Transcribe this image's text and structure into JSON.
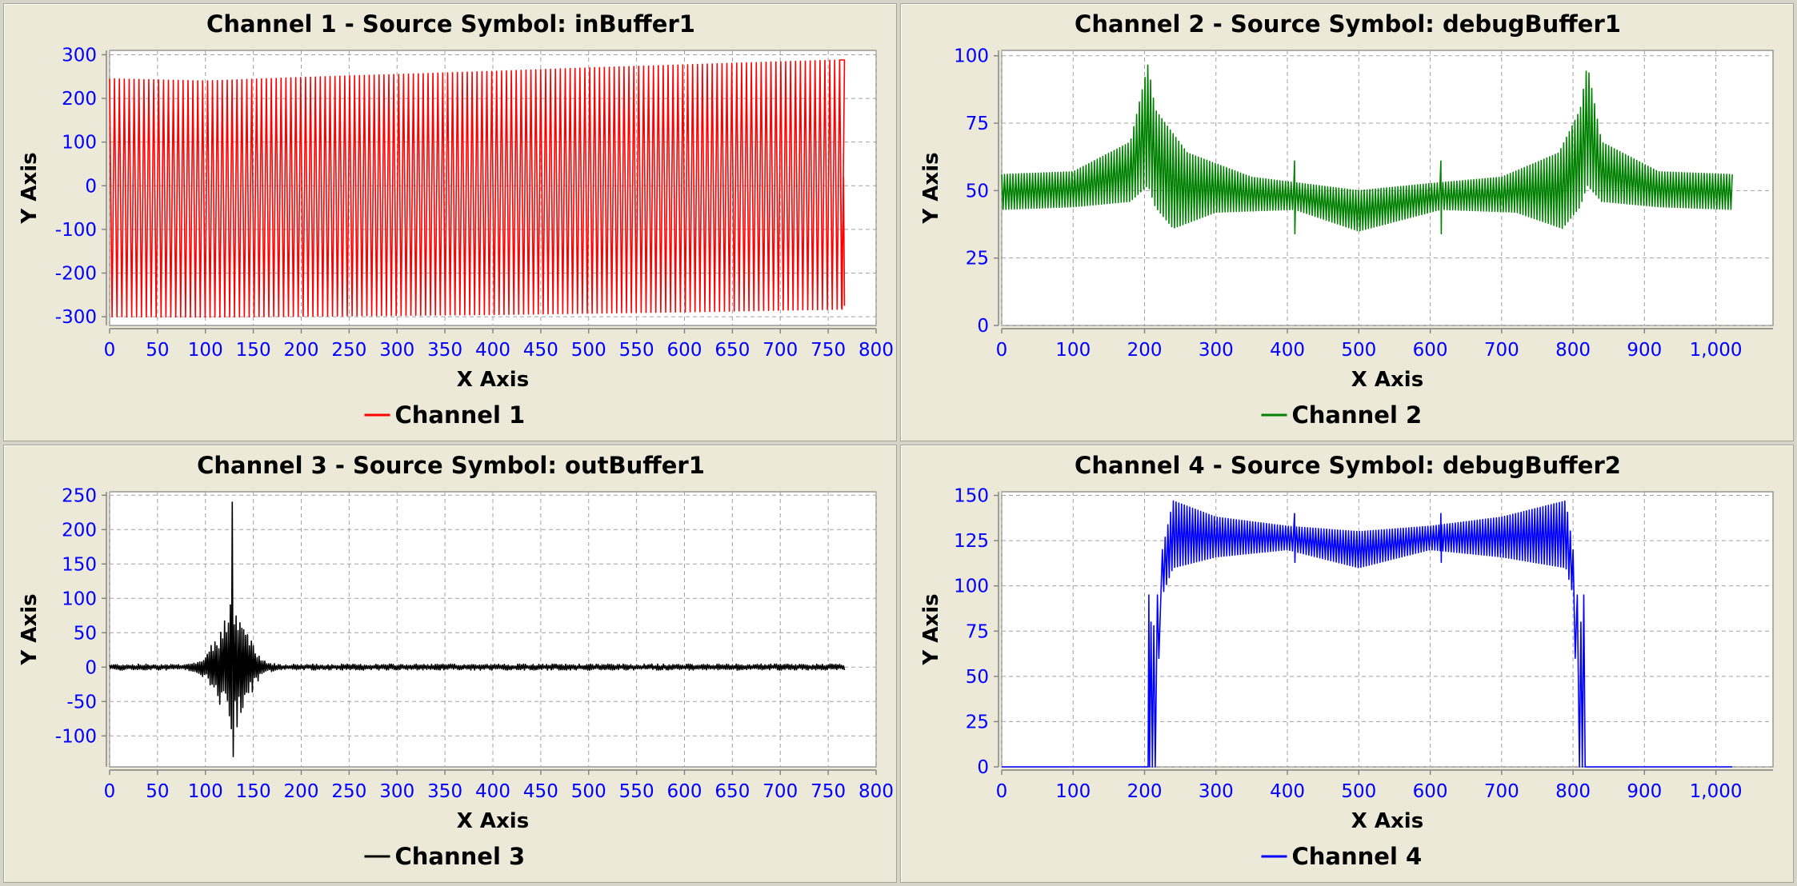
{
  "window": {
    "background": "#ece9d8"
  },
  "panels": [
    {
      "title": "Channel 1 - Source Symbol: inBuffer1",
      "xlabel": "X Axis",
      "ylabel": "Y Axis",
      "legend": "Channel 1",
      "color": "#ff0000"
    },
    {
      "title": "Channel 2 - Source Symbol: debugBuffer1",
      "xlabel": "X Axis",
      "ylabel": "Y Axis",
      "legend": "Channel 2",
      "color": "#008000"
    },
    {
      "title": "Channel 3 - Source Symbol: outBuffer1",
      "xlabel": "X Axis",
      "ylabel": "Y Axis",
      "legend": "Channel 3",
      "color": "#000000"
    },
    {
      "title": "Channel 4 - Source Symbol: debugBuffer2",
      "xlabel": "X Axis",
      "ylabel": "Y Axis",
      "legend": "Channel 4",
      "color": "#0000ff"
    }
  ],
  "chart_data": [
    {
      "type": "line",
      "title": "Channel 1 - Source Symbol: inBuffer1",
      "xlabel": "X Axis",
      "ylabel": "Y Axis",
      "xlim": [
        0,
        800
      ],
      "ylim": [
        -320,
        310
      ],
      "xticks": [
        0,
        50,
        100,
        150,
        200,
        250,
        300,
        350,
        400,
        450,
        500,
        550,
        600,
        650,
        700,
        750,
        800
      ],
      "xtick_labels": [
        "0",
        "50",
        "100",
        "150",
        "200",
        "250",
        "300",
        "350",
        "400",
        "450",
        "500",
        "550",
        "600",
        "650",
        "700",
        "750",
        "800"
      ],
      "yticks": [
        -300,
        -200,
        -100,
        0,
        100,
        200,
        300
      ],
      "ytick_labels": [
        "-300",
        "-200",
        "-100",
        "0",
        "100",
        "200",
        "300"
      ],
      "grid": true,
      "legend_position": "bottom",
      "series": [
        {
          "name": "Channel 1",
          "color": "#ff0000",
          "signal": {
            "shape": "oscillation",
            "x_start": 0,
            "x_end": 767,
            "cycles": 150,
            "upper_envelope": [
              [
                0,
                245
              ],
              [
                100,
                240
              ],
              [
                200,
                248
              ],
              [
                300,
                255
              ],
              [
                400,
                262
              ],
              [
                500,
                270
              ],
              [
                600,
                277
              ],
              [
                700,
                284
              ],
              [
                762,
                288
              ]
            ],
            "lower_envelope": [
              [
                0,
                -300
              ],
              [
                100,
                -301
              ],
              [
                200,
                -299
              ],
              [
                300,
                -297
              ],
              [
                400,
                -295
              ],
              [
                500,
                -292
              ],
              [
                600,
                -289
              ],
              [
                700,
                -285
              ],
              [
                762,
                -283
              ]
            ],
            "end_points": [
              [
                762,
                288
              ],
              [
                764,
                -280
              ],
              [
                766,
                20
              ],
              [
                767,
                -275
              ]
            ]
          }
        }
      ]
    },
    {
      "type": "line",
      "title": "Channel 2 - Source Symbol: debugBuffer1",
      "xlabel": "X Axis",
      "ylabel": "Y Axis",
      "xlim": [
        0,
        1080
      ],
      "ylim": [
        0,
        102
      ],
      "xticks": [
        0,
        100,
        200,
        300,
        400,
        500,
        600,
        700,
        800,
        900,
        1000
      ],
      "xtick_labels": [
        "0",
        "100",
        "200",
        "300",
        "400",
        "500",
        "600",
        "700",
        "800",
        "900",
        "1,000"
      ],
      "yticks": [
        0,
        25,
        50,
        75,
        100
      ],
      "ytick_labels": [
        "0",
        "25",
        "50",
        "75",
        "100"
      ],
      "grid": true,
      "legend_position": "bottom",
      "series": [
        {
          "name": "Channel 2",
          "color": "#008000",
          "signal": {
            "shape": "oscillation",
            "x_start": 0,
            "x_end": 1023,
            "cycles": 260,
            "upper_envelope": [
              [
                0,
                56
              ],
              [
                100,
                57
              ],
              [
                180,
                68
              ],
              [
                205,
                97
              ],
              [
                215,
                80
              ],
              [
                260,
                64
              ],
              [
                350,
                55
              ],
              [
                410,
                53
              ],
              [
                500,
                50
              ],
              [
                615,
                53
              ],
              [
                700,
                55
              ],
              [
                780,
                64
              ],
              [
                810,
                80
              ],
              [
                820,
                97
              ],
              [
                840,
                68
              ],
              [
                920,
                57
              ],
              [
                1023,
                56
              ]
            ],
            "lower_envelope": [
              [
                0,
                43
              ],
              [
                100,
                44
              ],
              [
                180,
                46
              ],
              [
                205,
                52
              ],
              [
                215,
                44
              ],
              [
                240,
                36
              ],
              [
                300,
                42
              ],
              [
                410,
                43
              ],
              [
                500,
                35
              ],
              [
                615,
                43
              ],
              [
                720,
                42
              ],
              [
                785,
                36
              ],
              [
                810,
                44
              ],
              [
                820,
                52
              ],
              [
                840,
                46
              ],
              [
                920,
                44
              ],
              [
                1023,
                43
              ]
            ],
            "spikes": [
              [
                410,
                61,
                34
              ],
              [
                615,
                61,
                34
              ]
            ]
          }
        }
      ]
    },
    {
      "type": "line",
      "title": "Channel 3 - Source Symbol: outBuffer1",
      "xlabel": "X Axis",
      "ylabel": "Y Axis",
      "xlim": [
        0,
        800
      ],
      "ylim": [
        -145,
        255
      ],
      "xticks": [
        0,
        50,
        100,
        150,
        200,
        250,
        300,
        350,
        400,
        450,
        500,
        550,
        600,
        650,
        700,
        750,
        800
      ],
      "xtick_labels": [
        "0",
        "50",
        "100",
        "150",
        "200",
        "250",
        "300",
        "350",
        "400",
        "450",
        "500",
        "550",
        "600",
        "650",
        "700",
        "750",
        "800"
      ],
      "yticks": [
        -100,
        -50,
        0,
        50,
        100,
        150,
        200,
        250
      ],
      "ytick_labels": [
        "-100",
        "-50",
        "0",
        "50",
        "100",
        "150",
        "200",
        "250"
      ],
      "grid": true,
      "legend_position": "bottom",
      "series": [
        {
          "name": "Channel 3",
          "color": "#000000",
          "signal": {
            "shape": "burst",
            "x_start": 0,
            "x_end": 767,
            "center": 128,
            "peak_max": 240,
            "peak_min": -130,
            "burst_width": 45,
            "baseline_noise": 3
          }
        }
      ]
    },
    {
      "type": "line",
      "title": "Channel 4 - Source Symbol: debugBuffer2",
      "xlabel": "X Axis",
      "ylabel": "Y Axis",
      "xlim": [
        0,
        1080
      ],
      "ylim": [
        0,
        152
      ],
      "xticks": [
        0,
        100,
        200,
        300,
        400,
        500,
        600,
        700,
        800,
        900,
        1000
      ],
      "xtick_labels": [
        "0",
        "100",
        "200",
        "300",
        "400",
        "500",
        "600",
        "700",
        "800",
        "900",
        "1,000"
      ],
      "yticks": [
        0,
        25,
        50,
        75,
        100,
        125,
        150
      ],
      "ytick_labels": [
        "0",
        "25",
        "50",
        "75",
        "100",
        "125",
        "150"
      ],
      "grid": true,
      "legend_position": "bottom",
      "series": [
        {
          "name": "Channel 4",
          "color": "#0000ff",
          "signal": {
            "shape": "oscillation",
            "x_start": 225,
            "x_end": 800,
            "cycles": 150,
            "upper_envelope": [
              [
                225,
                120
              ],
              [
                240,
                147
              ],
              [
                300,
                138
              ],
              [
                400,
                133
              ],
              [
                500,
                130
              ],
              [
                600,
                133
              ],
              [
                700,
                138
              ],
              [
                790,
                147
              ],
              [
                800,
                120
              ]
            ],
            "lower_envelope": [
              [
                225,
                95
              ],
              [
                240,
                110
              ],
              [
                300,
                116
              ],
              [
                400,
                120
              ],
              [
                500,
                110
              ],
              [
                600,
                120
              ],
              [
                700,
                116
              ],
              [
                790,
                110
              ],
              [
                800,
                95
              ]
            ],
            "spikes": [
              [
                410,
                140,
                113
              ],
              [
                615,
                140,
                113
              ]
            ],
            "baseline": 0,
            "edges": [
              [
                205,
                0
              ],
              [
                206,
                95
              ],
              [
                207,
                0
              ],
              [
                209,
                80
              ],
              [
                211,
                0
              ],
              [
                213,
                78
              ],
              [
                215,
                0
              ],
              [
                218,
                95
              ],
              [
                220,
                60
              ],
              [
                225,
                120
              ],
              [
                800,
                120
              ],
              [
                803,
                60
              ],
              [
                806,
                95
              ],
              [
                809,
                0
              ],
              [
                811,
                80
              ],
              [
                813,
                0
              ],
              [
                815,
                95
              ],
              [
                817,
                0
              ],
              [
                818,
                0
              ]
            ]
          }
        }
      ]
    }
  ]
}
